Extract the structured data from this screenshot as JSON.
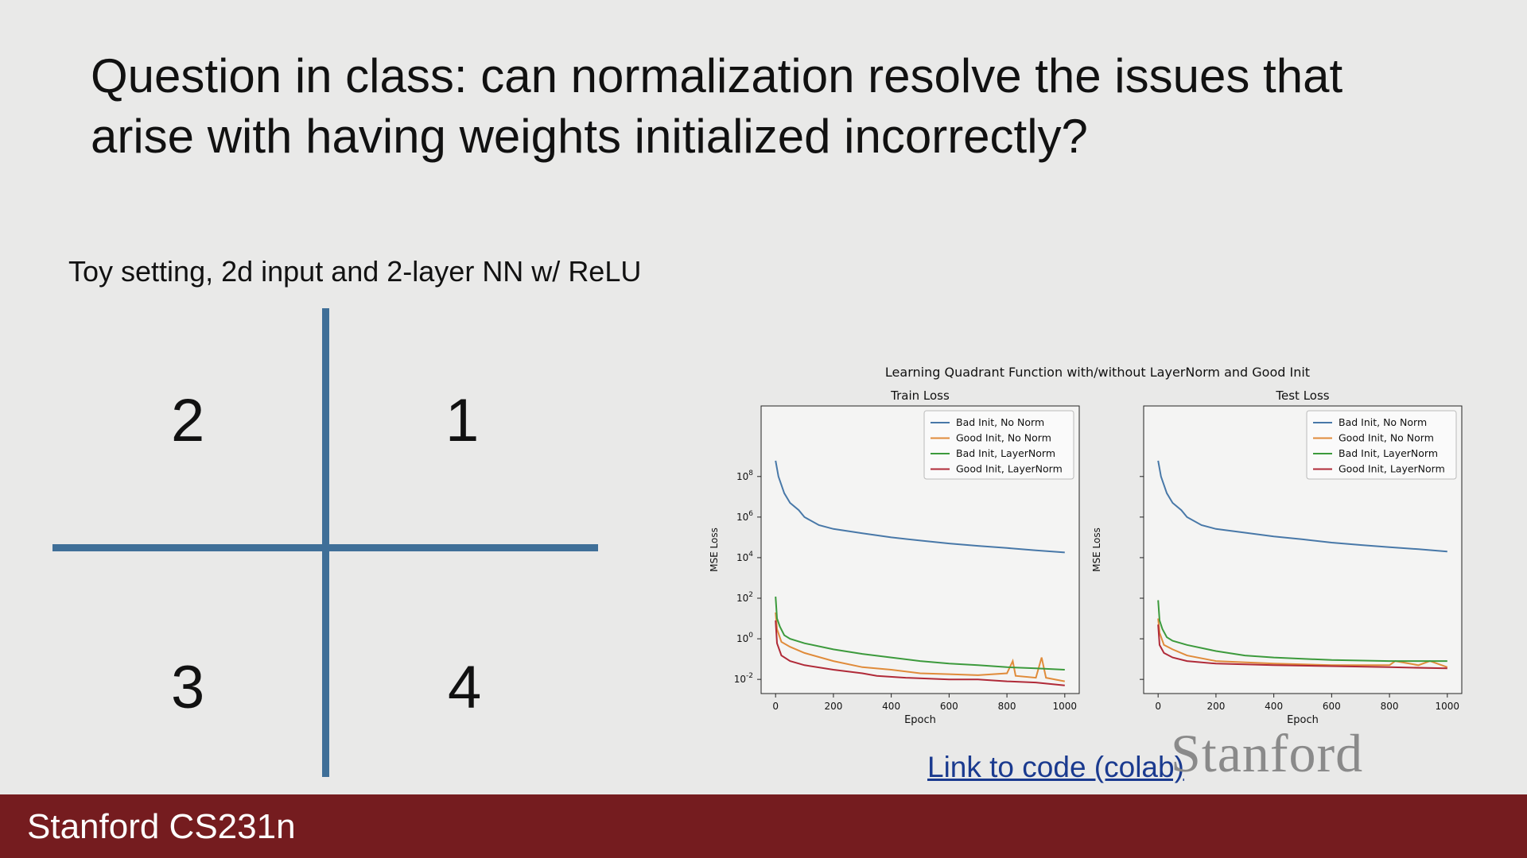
{
  "slide": {
    "title": "Question in class: can normalization resolve the issues that arise with having weights initialized incorrectly?",
    "subtitle": "Toy setting, 2d input and 2-layer NN w/ ReLU",
    "quadrants": {
      "q1": "1",
      "q2": "2",
      "q3": "3",
      "q4": "4"
    },
    "link_text": "Link to code (colab)",
    "logo_text": "Stanford",
    "footer_text": "Stanford CS231n"
  },
  "colors": {
    "background": "#e9e9e8",
    "axis": "#3f6f98",
    "footer": "#751c1f",
    "link": "#1a3a8f"
  },
  "chart_data": {
    "type": "line",
    "title": "Learning Quadrant Function with/without LayerNorm and Good Init",
    "y_scale": "log",
    "legend_position": "top-right",
    "subplots": [
      {
        "title": "Train Loss",
        "xlabel": "Epoch",
        "ylabel": "MSE Loss",
        "xlim": [
          -50,
          1050
        ],
        "ylim": [
          0.002,
          300000000000
        ],
        "xticks": [
          "0",
          "200",
          "400",
          "600",
          "800",
          "1000"
        ],
        "yticks": [
          "10^-2",
          "10^0",
          "10^2",
          "10^4",
          "10^6",
          "10^8"
        ],
        "series": [
          {
            "name": "Bad Init, No Norm",
            "color": "#4878a8",
            "points": [
              [
                0,
                600000000
              ],
              [
                10,
                100000000
              ],
              [
                30,
                15000000
              ],
              [
                50,
                5000000
              ],
              [
                80,
                2200000
              ],
              [
                100,
                1000000
              ],
              [
                150,
                400000
              ],
              [
                200,
                260000
              ],
              [
                300,
                160000
              ],
              [
                400,
                100000
              ],
              [
                500,
                70000
              ],
              [
                600,
                50000
              ],
              [
                700,
                38000
              ],
              [
                800,
                30000
              ],
              [
                900,
                23000
              ],
              [
                1000,
                18000
              ]
            ]
          },
          {
            "name": "Good Init, No Norm",
            "color": "#e08b3a",
            "points": [
              [
                0,
                20
              ],
              [
                5,
                3
              ],
              [
                20,
                0.7
              ],
              [
                50,
                0.4
              ],
              [
                100,
                0.2
              ],
              [
                200,
                0.08
              ],
              [
                300,
                0.04
              ],
              [
                400,
                0.03
              ],
              [
                500,
                0.02
              ],
              [
                600,
                0.018
              ],
              [
                700,
                0.016
              ],
              [
                800,
                0.02
              ],
              [
                820,
                0.08
              ],
              [
                830,
                0.015
              ],
              [
                900,
                0.012
              ],
              [
                920,
                0.12
              ],
              [
                935,
                0.012
              ],
              [
                1000,
                0.008
              ]
            ]
          },
          {
            "name": "Bad Init, LayerNorm",
            "color": "#3c9a3c",
            "points": [
              [
                0,
                120
              ],
              [
                5,
                10
              ],
              [
                15,
                4
              ],
              [
                30,
                1.5
              ],
              [
                50,
                1
              ],
              [
                100,
                0.6
              ],
              [
                200,
                0.3
              ],
              [
                300,
                0.18
              ],
              [
                400,
                0.12
              ],
              [
                500,
                0.08
              ],
              [
                600,
                0.06
              ],
              [
                700,
                0.05
              ],
              [
                800,
                0.04
              ],
              [
                900,
                0.035
              ],
              [
                1000,
                0.03
              ]
            ]
          },
          {
            "name": "Good Init, LayerNorm",
            "color": "#b02a38",
            "points": [
              [
                0,
                8
              ],
              [
                5,
                0.6
              ],
              [
                20,
                0.15
              ],
              [
                50,
                0.08
              ],
              [
                100,
                0.05
              ],
              [
                200,
                0.03
              ],
              [
                300,
                0.02
              ],
              [
                350,
                0.015
              ],
              [
                450,
                0.012
              ],
              [
                600,
                0.01
              ],
              [
                700,
                0.01
              ],
              [
                800,
                0.008
              ],
              [
                900,
                0.007
              ],
              [
                1000,
                0.005
              ]
            ]
          }
        ]
      },
      {
        "title": "Test Loss",
        "xlabel": "Epoch",
        "ylabel": "MSE Loss",
        "xlim": [
          -50,
          1050
        ],
        "ylim": [
          0.002,
          300000000000
        ],
        "xticks": [
          "0",
          "200",
          "400",
          "600",
          "800",
          "1000"
        ],
        "yticks": [],
        "series": [
          {
            "name": "Bad Init, No Norm",
            "color": "#4878a8",
            "points": [
              [
                0,
                600000000
              ],
              [
                10,
                100000000
              ],
              [
                30,
                15000000
              ],
              [
                50,
                5000000
              ],
              [
                80,
                2200000
              ],
              [
                100,
                1000000
              ],
              [
                150,
                400000
              ],
              [
                200,
                260000
              ],
              [
                300,
                170000
              ],
              [
                400,
                110000
              ],
              [
                500,
                80000
              ],
              [
                600,
                55000
              ],
              [
                700,
                42000
              ],
              [
                800,
                33000
              ],
              [
                900,
                26000
              ],
              [
                1000,
                20000
              ]
            ]
          },
          {
            "name": "Good Init, No Norm",
            "color": "#e08b3a",
            "points": [
              [
                0,
                10
              ],
              [
                5,
                2
              ],
              [
                20,
                0.5
              ],
              [
                50,
                0.3
              ],
              [
                100,
                0.15
              ],
              [
                200,
                0.08
              ],
              [
                400,
                0.06
              ],
              [
                600,
                0.05
              ],
              [
                800,
                0.05
              ],
              [
                820,
                0.08
              ],
              [
                900,
                0.05
              ],
              [
                940,
                0.08
              ],
              [
                1000,
                0.04
              ]
            ]
          },
          {
            "name": "Bad Init, LayerNorm",
            "color": "#3c9a3c",
            "points": [
              [
                0,
                80
              ],
              [
                5,
                8
              ],
              [
                15,
                3
              ],
              [
                30,
                1.2
              ],
              [
                50,
                0.8
              ],
              [
                100,
                0.5
              ],
              [
                200,
                0.25
              ],
              [
                300,
                0.15
              ],
              [
                400,
                0.12
              ],
              [
                600,
                0.09
              ],
              [
                800,
                0.08
              ],
              [
                1000,
                0.08
              ]
            ]
          },
          {
            "name": "Good Init, LayerNorm",
            "color": "#b02a38",
            "points": [
              [
                0,
                5
              ],
              [
                5,
                0.5
              ],
              [
                20,
                0.2
              ],
              [
                50,
                0.12
              ],
              [
                100,
                0.08
              ],
              [
                200,
                0.06
              ],
              [
                400,
                0.05
              ],
              [
                600,
                0.045
              ],
              [
                800,
                0.04
              ],
              [
                1000,
                0.035
              ]
            ]
          }
        ]
      }
    ]
  }
}
